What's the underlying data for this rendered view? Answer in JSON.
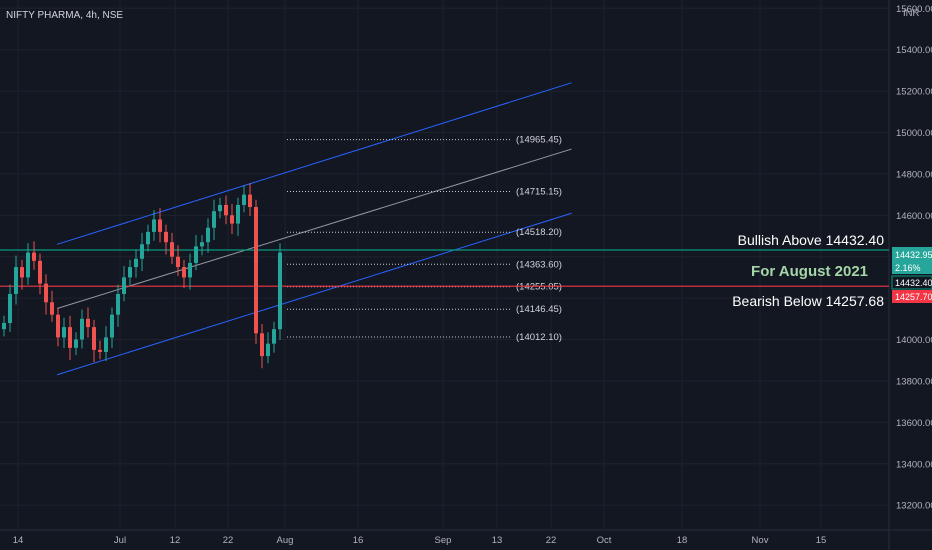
{
  "chart_data": {
    "type": "candlestick",
    "title": "NIFTY PHARMA, 4h, NSE",
    "currency": "INR",
    "y_axis": {
      "range": [
        13080,
        15640
      ],
      "ticks": [
        "15600.00",
        "15400.00",
        "15200.00",
        "15000.00",
        "14800.00",
        "14600.00",
        "14400.00",
        "14200.00",
        "14000.00",
        "13800.00",
        "13600.00",
        "13400.00",
        "13200.00"
      ]
    },
    "x_axis": {
      "ticks": [
        "14",
        "Jul",
        "12",
        "22",
        "Aug",
        "16",
        "Sep",
        "13",
        "22",
        "Oct",
        "18",
        "Nov",
        "15"
      ]
    },
    "levels": [
      "(14965.45)",
      "(14715.15)",
      "(14518.20)",
      "(14363.60)",
      "(14255.05)",
      "(14146.45)",
      "(14012.10)"
    ],
    "level_values": [
      14965.45,
      14715.15,
      14518.2,
      14363.6,
      14255.05,
      14146.45,
      14012.1
    ],
    "bullish_line": 14432.4,
    "bearish_line": 14257.7,
    "annotations": {
      "bullish": "Bullish Above 14432.40",
      "month": "For August 2021",
      "bearish": "Bearish Below 14257.68"
    },
    "price_tags": {
      "last": "14432.95",
      "change": "2.16%",
      "bull": "14432.40",
      "bear": "14257.70"
    },
    "channel": {
      "upper": [
        [
          14.5,
          14460
        ],
        [
          205,
          15240
        ]
      ],
      "middle": [
        [
          14.5,
          14150
        ],
        [
          205,
          14920
        ]
      ],
      "lower": [
        [
          14.5,
          13830
        ],
        [
          205,
          14610
        ]
      ]
    },
    "closes": [
      14080,
      14220,
      14350,
      14300,
      14420,
      14380,
      14270,
      14180,
      14120,
      14010,
      14060,
      13960,
      14000,
      14100,
      14060,
      13950,
      13940,
      14010,
      14120,
      14220,
      14300,
      14350,
      14390,
      14460,
      14520,
      14580,
      14520,
      14470,
      14400,
      14350,
      14300,
      14370,
      14450,
      14470,
      14540,
      14620,
      14650,
      14600,
      14560,
      14650,
      14700,
      14640,
      14030,
      13920,
      13980,
      14050,
      14420
    ],
    "colors": {
      "background": "#131722",
      "grid": "#1e222d",
      "up": "#26a69a",
      "down": "#ef5350",
      "channel": "#2962ff",
      "mid_line": "#9598a1",
      "bull": "#089981",
      "bear": "#f23645"
    }
  }
}
